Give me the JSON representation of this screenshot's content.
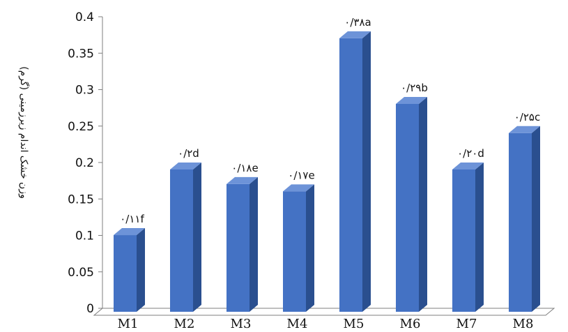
{
  "chart_data": {
    "type": "bar",
    "title": "",
    "xlabel": "",
    "ylabel": "وزن خشک اندام زیرزمینی (گرم)",
    "categories": [
      "M1",
      "M2",
      "M3",
      "M4",
      "M5",
      "M6",
      "M7",
      "M8"
    ],
    "values": [
      0.11,
      0.2,
      0.18,
      0.17,
      0.38,
      0.29,
      0.2,
      0.25
    ],
    "data_labels": [
      "۰/۱۱f",
      "۰/۲d",
      "۰/۱۸e",
      "۰/۱۷e",
      "۰/۳۸a",
      "۰/۲۹b",
      "۰/۲۰d",
      "۰/۲۵c"
    ],
    "yticks": [
      "0",
      "0.05",
      "0.1",
      "0.15",
      "0.2",
      "0.25",
      "0.3",
      "0.35",
      "0.4"
    ],
    "ylim": [
      0,
      0.4
    ],
    "grid": false,
    "legend": "none",
    "colors": {
      "bar_front": "#4472c4",
      "bar_side": "#2a4f8f",
      "bar_top": "#6d93d8",
      "axis": "#7f7f7f"
    }
  }
}
